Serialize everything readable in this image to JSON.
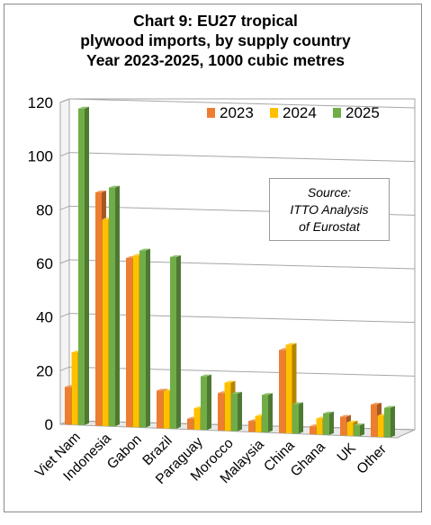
{
  "title": {
    "line1": "Chart 9: EU27 tropical",
    "line2": "plywood imports, by supply country",
    "line3": "Year 2023-2025, 1000 cubic metres"
  },
  "source_note": {
    "line1": "Source:",
    "line2": "ITTO Analysis",
    "line3": "of Eurostat"
  },
  "chart_data": {
    "type": "bar",
    "categories": [
      "Viet Nam",
      "Indonesia",
      "Gabon",
      "Brazil",
      "Paraguay",
      "Morocco",
      "Malaysia",
      "China",
      "Ghana",
      "UK",
      "Other"
    ],
    "series": [
      {
        "name": "2023",
        "color": "#ED7D31",
        "values": [
          14,
          87,
          63,
          14,
          4,
          14,
          4,
          31,
          3,
          7,
          12
        ]
      },
      {
        "name": "2024",
        "color": "#FFC000",
        "values": [
          27,
          77,
          64,
          14,
          8,
          18,
          6,
          33,
          6,
          5,
          8
        ]
      },
      {
        "name": "2025",
        "color": "#70AD47",
        "values": [
          118,
          89,
          66,
          64,
          20,
          14,
          14,
          11,
          8,
          4,
          11
        ]
      }
    ],
    "y_ticks": [
      "0",
      "20",
      "40",
      "60",
      "80",
      "100",
      "120"
    ],
    "ylim": [
      0,
      120
    ],
    "grid": true,
    "legend": "top-right",
    "style": "3d-clustered-column"
  }
}
